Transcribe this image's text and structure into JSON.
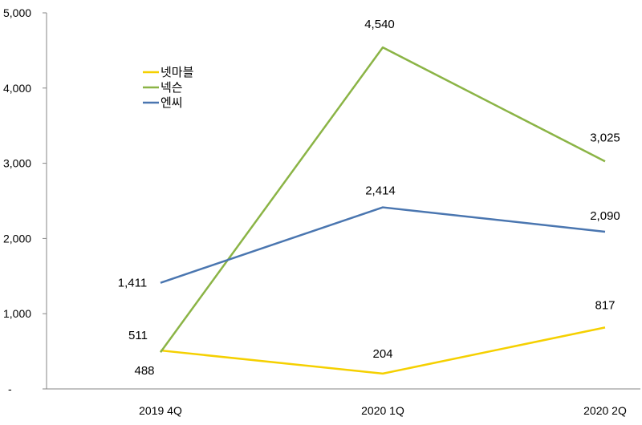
{
  "chart_data": {
    "type": "line",
    "categories": [
      "2019 4Q",
      "2020 1Q",
      "2020 2Q"
    ],
    "series": [
      {
        "name": "넷마블",
        "values": [
          511,
          204,
          817
        ],
        "color": "#F5D000"
      },
      {
        "name": "넥슨",
        "values": [
          488,
          4540,
          3025
        ],
        "color": "#8BB446"
      },
      {
        "name": "엔씨",
        "values": [
          1411,
          2414,
          2090
        ],
        "color": "#4A76B0"
      }
    ],
    "y_ticks": [
      "-",
      "1,000",
      "2,000",
      "3,000",
      "4,000",
      "5,000"
    ],
    "ylim": [
      0,
      5000
    ],
    "grid": false,
    "legend_position": "top-left",
    "data_labels": {
      "넷마블": [
        "511",
        "204",
        "817"
      ],
      "넥슨": [
        "488",
        "4,540",
        "3,025"
      ],
      "엔씨": [
        "1,411",
        "2,414",
        "2,090"
      ]
    }
  }
}
